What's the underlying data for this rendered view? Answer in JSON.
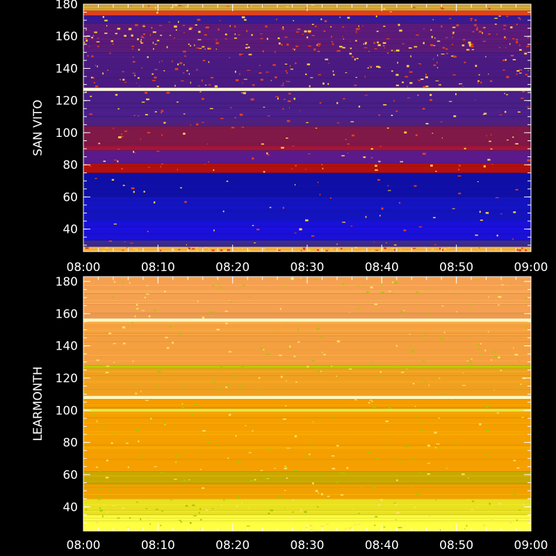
{
  "chart_data": [
    {
      "type": "heatmap",
      "ylabel": "SAN VITO",
      "x_ticks": [
        "08:00",
        "08:10",
        "08:20",
        "08:30",
        "08:40",
        "08:50",
        "09:00"
      ],
      "x_range": [
        "08:00",
        "09:00"
      ],
      "y_ticks": [
        40,
        60,
        80,
        100,
        120,
        140,
        160,
        180
      ],
      "ylim": [
        26,
        180
      ],
      "colorscale": "blue-red-yellow",
      "bands": [
        {
          "y0": 26,
          "y1": 29,
          "color": "#f0b040",
          "noise": 0.9
        },
        {
          "y0": 29,
          "y1": 33,
          "color": "#3a2a8a",
          "noise": 0.1
        },
        {
          "y0": 33,
          "y1": 45,
          "color": "#1a10d8",
          "noise": 0.05
        },
        {
          "y0": 45,
          "y1": 60,
          "color": "#1414bf",
          "noise": 0.05
        },
        {
          "y0": 60,
          "y1": 75,
          "color": "#0f0fa5",
          "noise": 0.05
        },
        {
          "y0": 75,
          "y1": 81,
          "color": "#b01010",
          "noise": 0.15
        },
        {
          "y0": 81,
          "y1": 89,
          "color": "#5a1a8a",
          "noise": 0.1
        },
        {
          "y0": 89,
          "y1": 92,
          "color": "#a01538",
          "noise": 0.1
        },
        {
          "y0": 92,
          "y1": 104,
          "color": "#801848",
          "noise": 0.1
        },
        {
          "y0": 104,
          "y1": 108,
          "color": "#502080",
          "noise": 0.1
        },
        {
          "y0": 108,
          "y1": 126,
          "color": "#4a1e88",
          "noise": 0.15
        },
        {
          "y0": 126,
          "y1": 128,
          "color": "#fff8e0",
          "noise": 0.0
        },
        {
          "y0": 128,
          "y1": 150,
          "color": "#4a1a80",
          "noise": 0.3
        },
        {
          "y0": 150,
          "y1": 168,
          "color": "#5a1a78",
          "noise": 0.5
        },
        {
          "y0": 168,
          "y1": 173,
          "color": "#3a1a90",
          "noise": 0.2
        },
        {
          "y0": 173,
          "y1": 176,
          "color": "#e04020",
          "noise": 0.1
        },
        {
          "y0": 176,
          "y1": 180,
          "color": "#d0a030",
          "noise": 0.2
        }
      ]
    },
    {
      "type": "heatmap",
      "ylabel": "LEARMONTH",
      "x_ticks": [
        "08:00",
        "08:10",
        "08:20",
        "08:30",
        "08:40",
        "08:50",
        "09:00"
      ],
      "x_range": [
        "08:00",
        "09:00"
      ],
      "y_ticks": [
        40,
        60,
        80,
        100,
        120,
        140,
        160,
        180
      ],
      "ylim": [
        25,
        183
      ],
      "colorscale": "orange-yellow",
      "bands": [
        {
          "y0": 25,
          "y1": 35,
          "color": "#ffff40",
          "noise": 0.2
        },
        {
          "y0": 35,
          "y1": 45,
          "color": "#e8e020",
          "noise": 0.2
        },
        {
          "y0": 45,
          "y1": 54,
          "color": "#f0a000",
          "noise": 0.1
        },
        {
          "y0": 54,
          "y1": 62,
          "color": "#c8a800",
          "noise": 0.1
        },
        {
          "y0": 62,
          "y1": 99,
          "color": "#f5a000",
          "noise": 0.1
        },
        {
          "y0": 99,
          "y1": 101,
          "color": "#e8e840",
          "noise": 0.0
        },
        {
          "y0": 101,
          "y1": 107,
          "color": "#f59a00",
          "noise": 0.1
        },
        {
          "y0": 107,
          "y1": 109,
          "color": "#fff8c0",
          "noise": 0.0
        },
        {
          "y0": 109,
          "y1": 126,
          "color": "#f0a020",
          "noise": 0.1
        },
        {
          "y0": 126,
          "y1": 128,
          "color": "#b0c000",
          "noise": 0.2
        },
        {
          "y0": 128,
          "y1": 155,
          "color": "#f5a040",
          "noise": 0.1
        },
        {
          "y0": 155,
          "y1": 157,
          "color": "#fff8c0",
          "noise": 0.0
        },
        {
          "y0": 157,
          "y1": 183,
          "color": "#f5a050",
          "noise": 0.1
        }
      ]
    }
  ]
}
